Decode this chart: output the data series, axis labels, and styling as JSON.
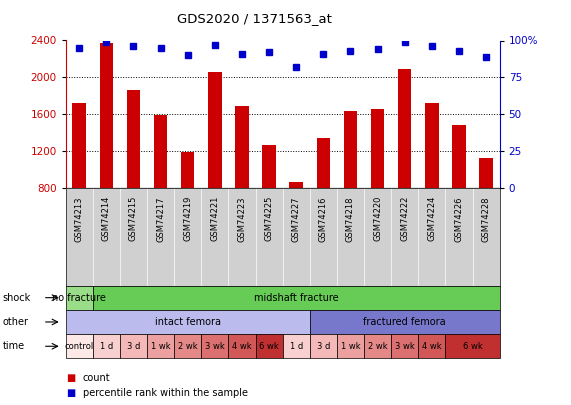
{
  "title": "GDS2020 / 1371563_at",
  "samples": [
    "GSM74213",
    "GSM74214",
    "GSM74215",
    "GSM74217",
    "GSM74219",
    "GSM74221",
    "GSM74223",
    "GSM74225",
    "GSM74227",
    "GSM74216",
    "GSM74218",
    "GSM74220",
    "GSM74222",
    "GSM74224",
    "GSM74226",
    "GSM74228"
  ],
  "counts": [
    1720,
    2370,
    1860,
    1590,
    1190,
    2060,
    1690,
    1270,
    870,
    1340,
    1640,
    1660,
    2090,
    1720,
    1480,
    1130
  ],
  "percentiles": [
    95,
    99,
    96,
    95,
    90,
    97,
    91,
    92,
    82,
    91,
    93,
    94,
    99,
    96,
    93,
    89
  ],
  "ylim_left": [
    800,
    2400
  ],
  "ylim_right": [
    0,
    100
  ],
  "yticks_left": [
    800,
    1200,
    1600,
    2000,
    2400
  ],
  "yticks_right": [
    0,
    25,
    50,
    75,
    100
  ],
  "bar_color": "#cc0000",
  "dot_color": "#0000cc",
  "shock_labels": [
    {
      "text": "no fracture",
      "start": 0,
      "end": 1,
      "color": "#99dd88"
    },
    {
      "text": "midshaft fracture",
      "start": 1,
      "end": 16,
      "color": "#66cc55"
    }
  ],
  "other_labels": [
    {
      "text": "intact femora",
      "start": 0,
      "end": 9,
      "color": "#bbbbee"
    },
    {
      "text": "fractured femora",
      "start": 9,
      "end": 16,
      "color": "#7777cc"
    }
  ],
  "time_labels": [
    {
      "text": "control",
      "start": 0,
      "end": 1,
      "color": "#fde8e8"
    },
    {
      "text": "1 d",
      "start": 1,
      "end": 2,
      "color": "#f8d0d0"
    },
    {
      "text": "3 d",
      "start": 2,
      "end": 3,
      "color": "#f4b8b8"
    },
    {
      "text": "1 wk",
      "start": 3,
      "end": 4,
      "color": "#eda0a0"
    },
    {
      "text": "2 wk",
      "start": 4,
      "end": 5,
      "color": "#e58888"
    },
    {
      "text": "3 wk",
      "start": 5,
      "end": 6,
      "color": "#dc7070"
    },
    {
      "text": "4 wk",
      "start": 6,
      "end": 7,
      "color": "#d25858"
    },
    {
      "text": "6 wk",
      "start": 7,
      "end": 8,
      "color": "#c03030"
    },
    {
      "text": "1 d",
      "start": 8,
      "end": 9,
      "color": "#f8d0d0"
    },
    {
      "text": "3 d",
      "start": 9,
      "end": 10,
      "color": "#f4b8b8"
    },
    {
      "text": "1 wk",
      "start": 10,
      "end": 11,
      "color": "#eda0a0"
    },
    {
      "text": "2 wk",
      "start": 11,
      "end": 12,
      "color": "#e58888"
    },
    {
      "text": "3 wk",
      "start": 12,
      "end": 13,
      "color": "#dc7070"
    },
    {
      "text": "4 wk",
      "start": 13,
      "end": 14,
      "color": "#d25858"
    },
    {
      "text": "6 wk",
      "start": 14,
      "end": 16,
      "color": "#c03030"
    }
  ],
  "row_labels": [
    "shock",
    "other",
    "time"
  ],
  "legend_items": [
    {
      "color": "#cc0000",
      "label": "count"
    },
    {
      "color": "#0000cc",
      "label": "percentile rank within the sample"
    }
  ],
  "sample_label_bg": "#d0d0d0",
  "left_label_color": "#cc0000",
  "right_label_color": "#0000cc"
}
